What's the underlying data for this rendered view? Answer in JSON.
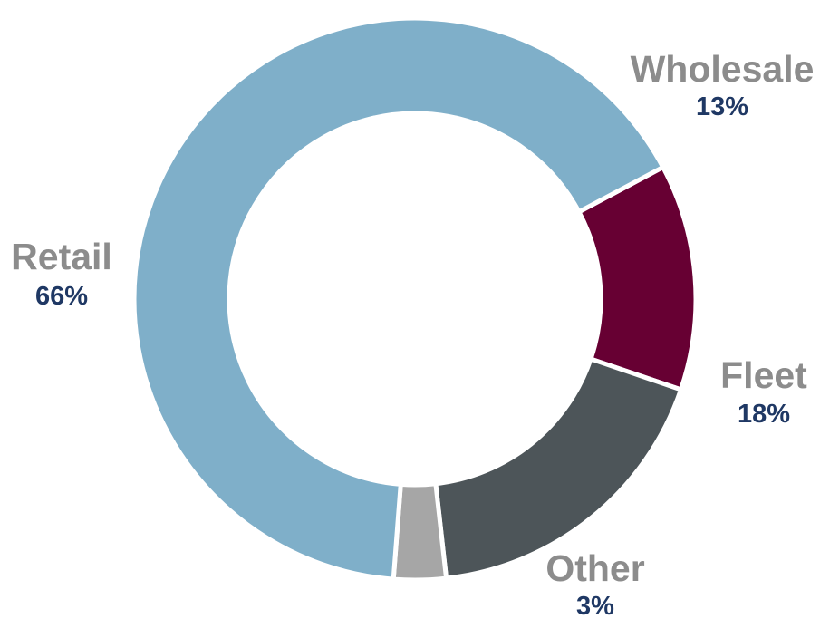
{
  "chart_data": {
    "type": "pie",
    "title": "",
    "categories": [
      "Wholesale",
      "Fleet",
      "Other",
      "Retail"
    ],
    "values": [
      13,
      18,
      3,
      66
    ],
    "value_labels": [
      "13%",
      "18%",
      "3%",
      "66%"
    ],
    "colors": [
      "#670033",
      "#4d5559",
      "#a6a6a6",
      "#7fafc9"
    ],
    "separator_color": "#ffffff",
    "label_color": "#8c8c8c",
    "value_label_color": "#1f3864",
    "legend": "none",
    "donut": true
  }
}
